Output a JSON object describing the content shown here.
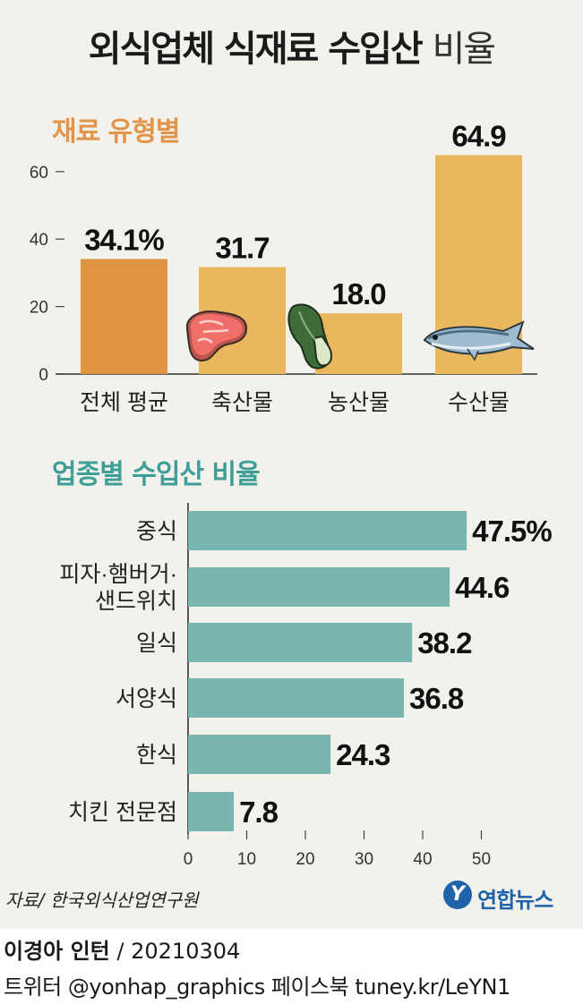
{
  "title": {
    "main": "외식업체 식재료 수입산",
    "light": "비율"
  },
  "footer": {
    "source": "자료/ 한국외식산업연구원",
    "logo": "연합뉴스",
    "logo_mark": "Y",
    "author": "이경아 인턴",
    "date": " / 20210304",
    "social": "트위터 @yonhap_graphics  페이스북 tuney.kr/LeYN1"
  },
  "colors": {
    "avg_bar": "#e0943f",
    "type_bar": "#e9b75d",
    "industry_bar": "#79b6b0",
    "section1": "#e2944a",
    "section2": "#3f9e97"
  },
  "chart_data": [
    {
      "type": "bar",
      "title": "재료 유형별",
      "categories": [
        "전체 평균",
        "축산물",
        "농산물",
        "수산물"
      ],
      "values": [
        34.1,
        31.7,
        18.0,
        64.9
      ],
      "value_labels": [
        "34.1%",
        "31.7",
        "18.0",
        "64.9"
      ],
      "icons": [
        "",
        "meat-icon",
        "bok-choy-icon",
        "fish-icon"
      ],
      "ylim": [
        0,
        65
      ],
      "yticks": [
        0,
        20,
        40,
        60
      ],
      "xlabel": "",
      "ylabel": "",
      "unit": "%"
    },
    {
      "type": "bar",
      "orientation": "horizontal",
      "title": "업종별 수입산 비율",
      "categories": [
        [
          "중식"
        ],
        [
          "피자·햄버거·",
          "샌드위치"
        ],
        [
          "일식"
        ],
        [
          "서양식"
        ],
        [
          "한식"
        ],
        [
          "치킨 전문점"
        ]
      ],
      "values": [
        47.5,
        44.6,
        38.2,
        36.8,
        24.3,
        7.8
      ],
      "value_labels": [
        "47.5%",
        "44.6",
        "38.2",
        "36.8",
        "24.3",
        "7.8"
      ],
      "xlim": [
        0,
        50
      ],
      "xticks": [
        0,
        10,
        20,
        30,
        40,
        50
      ],
      "xlabel": "",
      "ylabel": "",
      "unit": "%"
    }
  ]
}
